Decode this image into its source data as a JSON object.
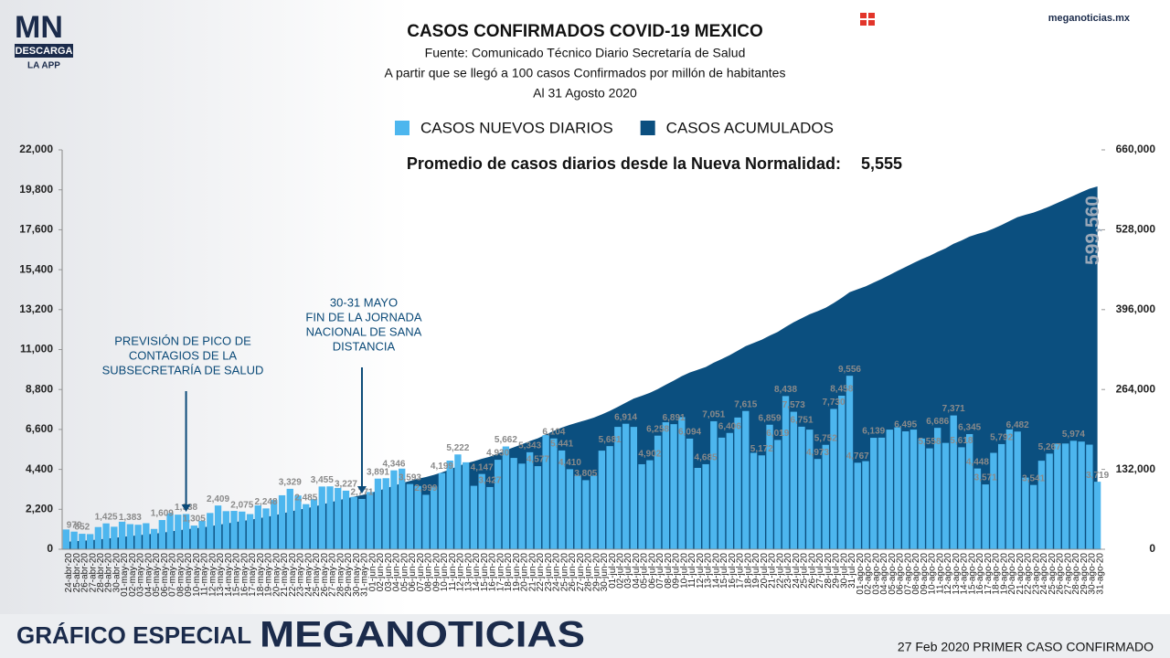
{
  "header": {
    "logo": "MN",
    "logo_sub": "DESCARGA",
    "logo_app": "LA APP",
    "site": "meganoticias.mx"
  },
  "footer": {
    "left": "GRÁFICO ESPECIAL",
    "brand": "MEGANOTICIAS",
    "right": "27 Feb 2020 PRIMER CASO CONFIRMADO"
  },
  "chart_data": {
    "type": "bar",
    "title": "CASOS CONFIRMADOS COVID-19 MEXICO",
    "subtitle": [
      "Fuente: Comunicado Técnico Diario Secretaría de Salud",
      "A partir que se llegó a 100 casos Confirmados por millón de habitantes",
      "Al 31 Agosto 2020"
    ],
    "highlight": {
      "text": "Promedio de casos diarios desde la Nueva Normalidad:",
      "value_text": "5,555"
    },
    "annotations": [
      {
        "lines": [
          "PREVISIÓN DE PICO DE",
          "CONTAGIOS DE LA",
          "SUBSECRETARÍA DE SALUD"
        ]
      },
      {
        "lines": [
          "30-31 MAYO",
          "FIN DE LA JORNADA",
          "NACIONAL DE SANA",
          "DISTANCIA"
        ]
      }
    ],
    "categories": [
      "24-abr-20",
      "25-abr-20",
      "26-abr-20",
      "27-abr-20",
      "28-abr-20",
      "29-abr-20",
      "30-abr-20",
      "01-may-20",
      "02-may-20",
      "03-may-20",
      "04-may-20",
      "05-may-20",
      "06-may-20",
      "07-may-20",
      "08-may-20",
      "09-may-20",
      "10-may-20",
      "11-may-20",
      "12-may-20",
      "13-may-20",
      "14-may-20",
      "15-may-20",
      "16-may-20",
      "17-may-20",
      "18-may-20",
      "19-may-20",
      "20-may-20",
      "21-may-20",
      "22-may-20",
      "23-may-20",
      "24-may-20",
      "25-may-20",
      "26-may-20",
      "27-may-20",
      "28-may-20",
      "29-may-20",
      "30-may-20",
      "31-may-20",
      "01-jun-20",
      "02-jun-20",
      "03-jun-20",
      "04-jun-20",
      "05-jun-20",
      "06-jun-20",
      "07-jun-20",
      "08-jun-20",
      "09-jun-20",
      "10-jun-20",
      "11-jun-20",
      "12-jun-20",
      "13-jun-20",
      "14-jun-20",
      "15-jun-20",
      "16-jun-20",
      "17-jun-20",
      "18-jun-20",
      "19-jun-20",
      "20-jun-20",
      "21-jun-20",
      "22-jun-20",
      "23-jun-20",
      "24-jun-20",
      "25-jun-20",
      "26-jun-20",
      "27-jun-20",
      "28-jun-20",
      "29-jun-20",
      "30-jun-20",
      "01-jul-20",
      "02-jul-20",
      "03-jul-20",
      "04-jul-20",
      "05-jul-20",
      "06-jul-20",
      "07-jul-20",
      "08-jul-20",
      "09-jul-20",
      "10-jul-20",
      "11-jul-20",
      "12-jul-20",
      "13-jul-20",
      "14-jul-20",
      "15-jul-20",
      "16-jul-20",
      "17-jul-20",
      "18-jul-20",
      "19-jul-20",
      "20-jul-20",
      "21-jul-20",
      "22-jul-20",
      "23-jul-20",
      "24-jul-20",
      "25-jul-20",
      "26-jul-20",
      "27-jul-20",
      "28-jul-20",
      "29-jul-20",
      "30-jul-20",
      "31-jul-20",
      "01-ago-20",
      "02-ago-20",
      "03-ago-20",
      "04-ago-20",
      "05-ago-20",
      "06-ago-20",
      "07-ago-20",
      "08-ago-20",
      "09-ago-20",
      "10-ago-20",
      "11-ago-20",
      "12-ago-20",
      "13-ago-20",
      "14-ago-20",
      "15-ago-20",
      "16-ago-20",
      "17-ago-20",
      "18-ago-20",
      "19-ago-20",
      "20-ago-20",
      "21-ago-20",
      "22-ago-20",
      "23-ago-20",
      "24-ago-20",
      "25-ago-20",
      "26-ago-20",
      "27-ago-20",
      "28-ago-20",
      "29-ago-20",
      "30-ago-20",
      "31-ago-20"
    ],
    "series": [
      {
        "name": "CASOS NUEVOS DIARIOS",
        "color": "#4db6ee",
        "values": [
          1089,
          970,
          852,
          835,
          1223,
          1425,
          1239,
          1515,
          1383,
          1349,
          1434,
          1120,
          1609,
          1982,
          1906,
          1938,
          1305,
          1562,
          1997,
          2409,
          2098,
          2112,
          2075,
          1937,
          2414,
          2248,
          2713,
          2973,
          3329,
          2960,
          2485,
          2764,
          3455,
          3463,
          3377,
          3227,
          2885,
          2771,
          3152,
          3891,
          3912,
          4346,
          4442,
          3593,
          3484,
          2999,
          3453,
          4199,
          4883,
          5222,
          4790,
          3494,
          4147,
          3427,
          4930,
          5662,
          5030,
          4717,
          5343,
          4577,
          6288,
          6104,
          5441,
          4410,
          4050,
          3805,
          4050,
          5432,
          5681,
          6740,
          6914,
          6740,
          4683,
          4902,
          6258,
          6995,
          6891,
          7280,
          6094,
          4482,
          4685,
          7051,
          6149,
          6406,
          7257,
          7615,
          5311,
          5172,
          6859,
          6019,
          8438,
          7573,
          6751,
          6590,
          4973,
          5752,
          7730,
          8458,
          9556,
          4767,
          4853,
          6139,
          6148,
          6590,
          6717,
          6495,
          6590,
          6100,
          5558,
          6686,
          5858,
          7371,
          5618,
          6345,
          4448,
          3571,
          5310,
          5792,
          6600,
          6482,
          3948,
          3541,
          4876,
          5267,
          5824,
          5824,
          5974,
          5931,
          5762,
          3719
        ],
        "value_labels": [
          null,
          "970",
          "852",
          null,
          null,
          "1,425",
          null,
          null,
          "1,383",
          null,
          null,
          null,
          "1,609",
          null,
          null,
          "1,938",
          "1,305",
          null,
          null,
          "2,409",
          null,
          null,
          "2,075",
          null,
          null,
          "2,248",
          null,
          null,
          "3,329",
          null,
          "2,485",
          null,
          "3,455",
          null,
          null,
          "3,227",
          null,
          "2,771",
          null,
          "3,891",
          null,
          "4,346",
          null,
          "3,593",
          null,
          "2,999",
          null,
          "4,199",
          null,
          "5,222",
          null,
          null,
          "4,147",
          "3,427",
          "4,930",
          "5,662",
          null,
          null,
          "5,343",
          "4,577",
          null,
          "6,104",
          "5,441",
          "4,410",
          null,
          "3,805",
          null,
          null,
          "5,681",
          null,
          "6,914",
          null,
          null,
          "4,902",
          "6,258",
          null,
          "6,891",
          null,
          "6,094",
          null,
          "4,685",
          "7,051",
          null,
          "6,406",
          null,
          "7,615",
          null,
          "5,172",
          "6,859",
          "6,019",
          "8,438",
          "7,573",
          "6,751",
          null,
          "4,973",
          "5,752",
          "7,730",
          "8,458",
          "9,556",
          "4,767",
          null,
          "6,139",
          null,
          null,
          null,
          "6,495",
          null,
          null,
          "5,558",
          "6,686",
          null,
          "7,371",
          "5,618",
          "6,345",
          "4,448",
          "3,571",
          null,
          "5,792",
          null,
          "6,482",
          null,
          "3,541",
          null,
          "5,267",
          null,
          null,
          "5,974",
          null,
          null,
          "3,719"
        ]
      },
      {
        "name": "CASOS ACUMULADOS",
        "color": "#0b4f7f",
        "type": "area",
        "axis": "y2",
        "values": [
          12239,
          13209,
          14061,
          14896,
          16119,
          17544,
          18783,
          20298,
          21681,
          23030,
          24464,
          25584,
          27193,
          29175,
          31081,
          33019,
          34324,
          35886,
          37883,
          40292,
          42390,
          44502,
          46577,
          48514,
          50928,
          53176,
          55889,
          58862,
          62191,
          65151,
          67636,
          70400,
          73855,
          77318,
          80695,
          83922,
          86807,
          89578,
          92730,
          96621,
          100533,
          104879,
          109321,
          112914,
          116398,
          119397,
          122850,
          127049,
          131932,
          137154,
          141944,
          145438,
          149585,
          153012,
          157942,
          163604,
          168634,
          173351,
          178694,
          183271,
          189559,
          195663,
          201104,
          205514,
          209564,
          213369,
          217419,
          222851,
          228532,
          235272,
          242186,
          248926,
          253609,
          258511,
          264769,
          271764,
          278655,
          285935,
          292029,
          296511,
          301196,
          308247,
          314396,
          320802,
          328059,
          335674,
          340985,
          346157,
          353016,
          359035,
          367473,
          375046,
          381797,
          388387,
          393360,
          399112,
          406842,
          415300,
          424856,
          429623,
          434476,
          440615,
          446763,
          453353,
          460070,
          466565,
          473155,
          479255,
          484813,
          491499,
          497357,
          504728,
          510346,
          516691,
          521139,
          524710,
          530020,
          535812,
          542412,
          548894,
          552842,
          556383,
          561259,
          566526,
          572350,
          578174,
          584148,
          590079,
          595841,
          599560
        ],
        "value_labels": [
          null,
          null,
          null,
          null,
          null,
          null,
          null,
          null,
          null,
          null,
          null,
          null,
          null,
          null,
          null,
          null,
          null,
          null,
          null,
          null,
          null,
          null,
          null,
          null,
          null,
          null,
          null,
          null,
          null,
          null,
          null,
          null,
          null,
          null,
          null,
          null,
          null,
          null,
          null,
          null,
          null,
          null,
          null,
          null,
          null,
          null,
          null,
          null,
          null,
          null,
          null,
          null,
          null,
          null,
          null,
          null,
          null,
          null,
          null,
          null,
          null,
          null,
          null,
          null,
          null,
          null,
          null,
          null,
          null,
          null,
          null,
          null,
          null,
          null,
          null,
          null,
          null,
          null,
          null,
          null,
          null,
          null,
          null,
          null,
          null,
          null,
          null,
          null,
          null,
          null,
          null,
          null,
          null,
          null,
          null,
          null,
          null,
          null,
          null,
          null,
          null,
          null,
          null,
          null,
          null,
          null,
          null,
          null,
          null,
          null,
          null,
          null,
          null,
          null,
          null,
          null,
          null,
          null,
          null,
          null,
          null,
          null,
          null,
          null,
          null,
          null,
          null,
          null,
          null,
          "599,560"
        ]
      }
    ],
    "ylim": [
      0,
      22000
    ],
    "yticks": [
      0,
      {
        "value": 2200,
        "label": "2,200"
      },
      {
        "value": 4400,
        "label": "4,400"
      },
      {
        "value": 6600,
        "label": "6,600"
      },
      {
        "value": 8800,
        "label": "8,800"
      },
      {
        "value": 11000,
        "label": "11,000"
      },
      {
        "value": 13200,
        "label": "13,200"
      },
      {
        "value": 15400,
        "label": "15,400"
      },
      {
        "value": 17600,
        "label": "17,600"
      },
      {
        "value": 19800,
        "label": "19,800"
      },
      {
        "value": 22000,
        "label": "22,000"
      }
    ],
    "y2lim": [
      0,
      660000
    ],
    "y2ticks": [
      0,
      {
        "value": 132000,
        "label": "132,000"
      },
      {
        "value": 264000,
        "label": "264,000"
      },
      {
        "value": 396000,
        "label": "396,000"
      },
      {
        "value": 528000,
        "label": "528,000"
      },
      {
        "value": 660000,
        "label": "660,000"
      }
    ],
    "grid": false,
    "legend": "top"
  }
}
